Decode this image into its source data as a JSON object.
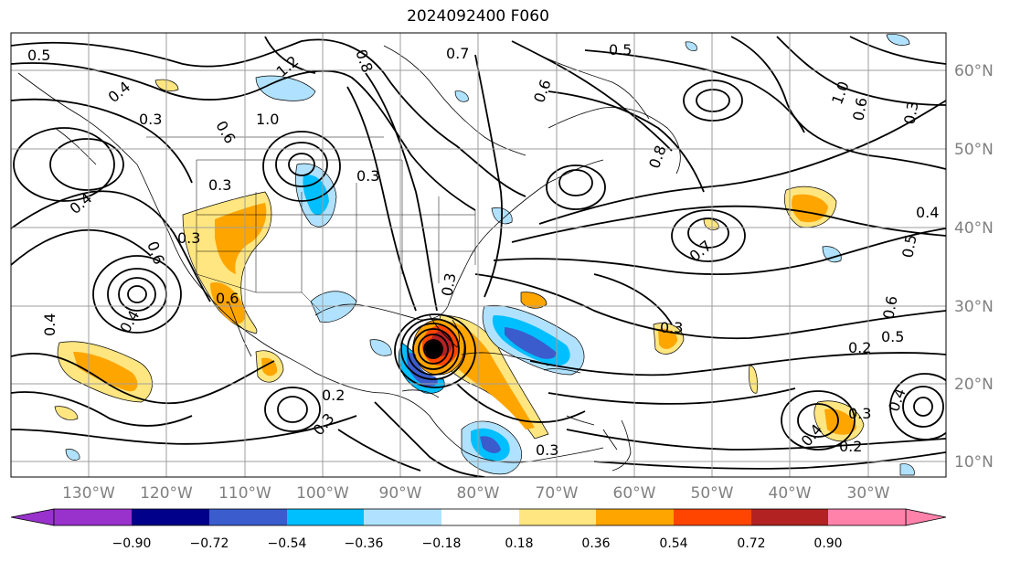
{
  "title": "2024092400 F060",
  "lon_labels": [
    "130°W",
    "120°W",
    "110°W",
    "100°W",
    "90°W",
    "80°W",
    "70°W",
    "60°W",
    "50°W",
    "40°W",
    "30°W"
  ],
  "lat_labels": [
    "60°N",
    "50°N",
    "40°N",
    "30°N",
    "20°N",
    "10°N"
  ],
  "colorbar": {
    "ticks": [
      "−0.90",
      "−0.72",
      "−0.54",
      "−0.36",
      "−0.18",
      "0.18",
      "0.36",
      "0.54",
      "0.72",
      "0.90"
    ],
    "colors": [
      "#9932cc",
      "#00008b",
      "#3a5ccc",
      "#00bfff",
      "#b0e2ff",
      "#ffffff",
      "#ffe680",
      "#ffa500",
      "#ff4500",
      "#b22222",
      "#ff82ab"
    ]
  },
  "contour_labels": [
    "0.5",
    "0.4",
    "0.3",
    "1.2",
    "1.0",
    "0.6",
    "0.8",
    "0.7",
    "0.3",
    "0.4",
    "0.3",
    "0.6",
    "0.5",
    "0.8",
    "0.6",
    "0.3",
    "1.0",
    "0.6",
    "0.3",
    "0.4",
    "0.5",
    "0.4",
    "0.4",
    "0.6",
    "0.7",
    "0.3",
    "0.6",
    "0.5",
    "0.2",
    "0.3",
    "0.4",
    "0.2",
    "0.4",
    "0.3",
    "0.2",
    "0.3",
    "0.3"
  ]
}
